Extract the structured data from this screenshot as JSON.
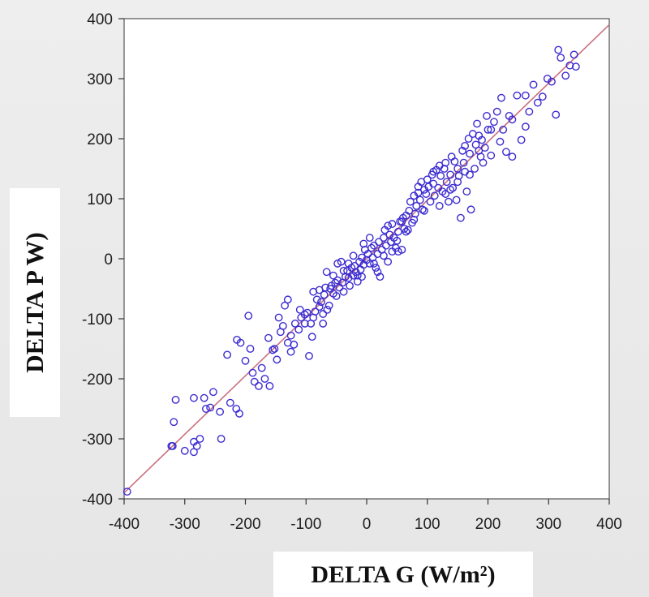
{
  "chart_data": {
    "type": "scatter",
    "title": "",
    "xlabel": "DELTA G (W/m²)",
    "ylabel": "DELTA P W)",
    "xlim": [
      -400,
      400
    ],
    "ylim": [
      -400,
      400
    ],
    "x_ticks": [
      -400,
      -300,
      -200,
      -100,
      0,
      100,
      200,
      300,
      400
    ],
    "y_ticks": [
      -400,
      -300,
      -200,
      -100,
      0,
      100,
      200,
      300,
      400
    ],
    "grid": false,
    "legend": "none",
    "marker_color": "#3b2bd1",
    "line_color": "#c9707e",
    "fit_line": {
      "x": [
        -400,
        400
      ],
      "y": [
        -390,
        390
      ]
    },
    "series": [
      {
        "points": [
          [
            -395,
            -388
          ],
          [
            -320,
            -312
          ],
          [
            -322,
            -312
          ],
          [
            -315,
            -235
          ],
          [
            -318,
            -272
          ],
          [
            -300,
            -320
          ],
          [
            -285,
            -322
          ],
          [
            -285,
            -305
          ],
          [
            -280,
            -312
          ],
          [
            -275,
            -300
          ],
          [
            -285,
            -232
          ],
          [
            -265,
            -250
          ],
          [
            -258,
            -248
          ],
          [
            -253,
            -222
          ],
          [
            -242,
            -255
          ],
          [
            -240,
            -300
          ],
          [
            -230,
            -160
          ],
          [
            -225,
            -240
          ],
          [
            -215,
            -250
          ],
          [
            -210,
            -258
          ],
          [
            -200,
            -170
          ],
          [
            -195,
            -95
          ],
          [
            -192,
            -150
          ],
          [
            -188,
            -190
          ],
          [
            -185,
            -205
          ],
          [
            -178,
            -212
          ],
          [
            -173,
            -182
          ],
          [
            -168,
            -200
          ],
          [
            -162,
            -132
          ],
          [
            -160,
            -212
          ],
          [
            -155,
            -152
          ],
          [
            -152,
            -150
          ],
          [
            -148,
            -168
          ],
          [
            -142,
            -122
          ],
          [
            -138,
            -112
          ],
          [
            -135,
            -78
          ],
          [
            -130,
            -140
          ],
          [
            -125,
            -128
          ],
          [
            -120,
            -143
          ],
          [
            -118,
            -108
          ],
          [
            -112,
            -118
          ],
          [
            -108,
            -98
          ],
          [
            -102,
            -93
          ],
          [
            -98,
            -90
          ],
          [
            -95,
            -162
          ],
          [
            -92,
            -108
          ],
          [
            -88,
            -98
          ],
          [
            -85,
            -88
          ],
          [
            -82,
            -68
          ],
          [
            -78,
            -80
          ],
          [
            -75,
            -72
          ],
          [
            -72,
            -92
          ],
          [
            -70,
            -60
          ],
          [
            -68,
            -48
          ],
          [
            -65,
            -85
          ],
          [
            -62,
            -78
          ],
          [
            -60,
            -50
          ],
          [
            -58,
            -45
          ],
          [
            -55,
            -58
          ],
          [
            -52,
            -40
          ],
          [
            -50,
            -62
          ],
          [
            -48,
            -36
          ],
          [
            -45,
            -48
          ],
          [
            -42,
            -5
          ],
          [
            -40,
            -40
          ],
          [
            -38,
            -55
          ],
          [
            -35,
            -30
          ],
          [
            -32,
            -20
          ],
          [
            -30,
            -32
          ],
          [
            -28,
            -45
          ],
          [
            -25,
            -15
          ],
          [
            -22,
            -28
          ],
          [
            -20,
            -12
          ],
          [
            -18,
            -22
          ],
          [
            -15,
            -38
          ],
          [
            -12,
            -5
          ],
          [
            -10,
            -18
          ],
          [
            -8,
            2
          ],
          [
            -5,
            -10
          ],
          [
            -3,
            15
          ],
          [
            0,
            -2
          ],
          [
            2,
            8
          ],
          [
            5,
            -8
          ],
          [
            8,
            18
          ],
          [
            10,
            2
          ],
          [
            12,
            22
          ],
          [
            15,
            -15
          ],
          [
            18,
            8
          ],
          [
            20,
            28
          ],
          [
            22,
            -30
          ],
          [
            25,
            15
          ],
          [
            28,
            35
          ],
          [
            30,
            48
          ],
          [
            32,
            22
          ],
          [
            35,
            55
          ],
          [
            38,
            40
          ],
          [
            40,
            28
          ],
          [
            42,
            58
          ],
          [
            45,
            35
          ],
          [
            48,
            18
          ],
          [
            50,
            30
          ],
          [
            52,
            45
          ],
          [
            55,
            62
          ],
          [
            58,
            15
          ],
          [
            60,
            68
          ],
          [
            62,
            50
          ],
          [
            65,
            72
          ],
          [
            68,
            48
          ],
          [
            70,
            80
          ],
          [
            72,
            95
          ],
          [
            75,
            60
          ],
          [
            78,
            105
          ],
          [
            80,
            75
          ],
          [
            82,
            88
          ],
          [
            85,
            110
          ],
          [
            88,
            98
          ],
          [
            90,
            128
          ],
          [
            92,
            82
          ],
          [
            95,
            115
          ],
          [
            98,
            108
          ],
          [
            100,
            132
          ],
          [
            102,
            120
          ],
          [
            105,
            95
          ],
          [
            108,
            140
          ],
          [
            110,
            125
          ],
          [
            112,
            105
          ],
          [
            115,
            148
          ],
          [
            118,
            118
          ],
          [
            120,
            155
          ],
          [
            122,
            138
          ],
          [
            125,
            112
          ],
          [
            128,
            150
          ],
          [
            130,
            160
          ],
          [
            132,
            128
          ],
          [
            135,
            95
          ],
          [
            138,
            140
          ],
          [
            140,
            170
          ],
          [
            142,
            118
          ],
          [
            145,
            162
          ],
          [
            148,
            98
          ],
          [
            150,
            150
          ],
          [
            152,
            138
          ],
          [
            155,
            68
          ],
          [
            158,
            180
          ],
          [
            160,
            160
          ],
          [
            162,
            145
          ],
          [
            165,
            112
          ],
          [
            168,
            200
          ],
          [
            170,
            175
          ],
          [
            172,
            82
          ],
          [
            175,
            208
          ],
          [
            178,
            150
          ],
          [
            180,
            190
          ],
          [
            182,
            225
          ],
          [
            185,
            180
          ],
          [
            188,
            170
          ],
          [
            190,
            198
          ],
          [
            192,
            160
          ],
          [
            195,
            185
          ],
          [
            198,
            238
          ],
          [
            200,
            215
          ],
          [
            205,
            172
          ],
          [
            210,
            228
          ],
          [
            215,
            245
          ],
          [
            220,
            195
          ],
          [
            225,
            215
          ],
          [
            230,
            178
          ],
          [
            235,
            238
          ],
          [
            240,
            170
          ],
          [
            248,
            272
          ],
          [
            255,
            198
          ],
          [
            262,
            220
          ],
          [
            268,
            245
          ],
          [
            275,
            290
          ],
          [
            282,
            260
          ],
          [
            290,
            270
          ],
          [
            298,
            300
          ],
          [
            305,
            295
          ],
          [
            312,
            240
          ],
          [
            316,
            348
          ],
          [
            320,
            335
          ],
          [
            328,
            305
          ],
          [
            335,
            322
          ],
          [
            342,
            340
          ],
          [
            345,
            320
          ],
          [
            -268,
            -232
          ],
          [
            -208,
            -140
          ],
          [
            -214,
            -135
          ],
          [
            -102,
            -108
          ],
          [
            -130,
            -68
          ],
          [
            -88,
            -55
          ],
          [
            -78,
            -52
          ],
          [
            -66,
            -22
          ],
          [
            -48,
            -8
          ],
          [
            -30,
            -8
          ],
          [
            -15,
            -28
          ],
          [
            -5,
            25
          ],
          [
            12,
            -8
          ],
          [
            28,
            5
          ],
          [
            42,
            12
          ],
          [
            58,
            62
          ],
          [
            85,
            120
          ],
          [
            120,
            88
          ],
          [
            138,
            115
          ],
          [
            162,
            188
          ],
          [
            185,
            205
          ],
          [
            205,
            215
          ],
          [
            222,
            268
          ],
          [
            240,
            232
          ],
          [
            262,
            272
          ],
          [
            -145,
            -98
          ],
          [
            -125,
            -155
          ],
          [
            -110,
            -85
          ],
          [
            -90,
            -130
          ],
          [
            -72,
            -108
          ],
          [
            -55,
            -28
          ],
          [
            -38,
            -20
          ],
          [
            -22,
            5
          ],
          [
            -8,
            -30
          ],
          [
            5,
            35
          ],
          [
            18,
            -22
          ],
          [
            35,
            -5
          ],
          [
            52,
            12
          ],
          [
            65,
            45
          ],
          [
            78,
            65
          ],
          [
            95,
            80
          ],
          [
            110,
            145
          ],
          [
            130,
            108
          ],
          [
            150,
            128
          ],
          [
            170,
            140
          ]
        ]
      }
    ]
  }
}
